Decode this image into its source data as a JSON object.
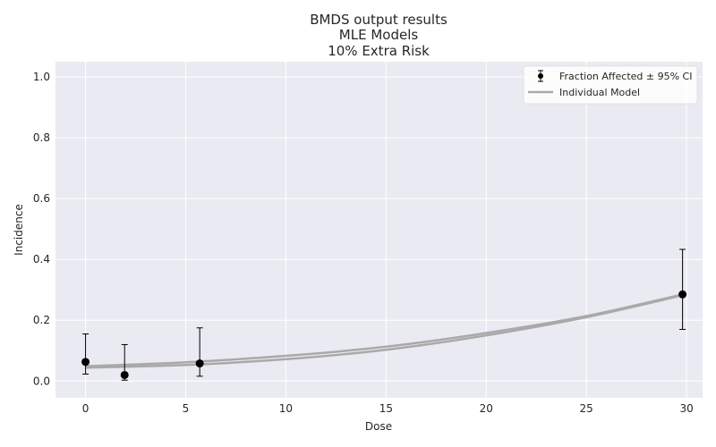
{
  "chart_data": {
    "type": "scatter",
    "title_lines": [
      "BMDS output results",
      "MLE Models",
      "10% Extra Risk"
    ],
    "xlabel": "Dose",
    "ylabel": "Incidence",
    "xlim": [
      -1.5,
      30.8
    ],
    "ylim": [
      -0.055,
      1.05
    ],
    "xticks": [
      0,
      5,
      10,
      15,
      20,
      25,
      30
    ],
    "yticks": [
      0.0,
      0.2,
      0.4,
      0.6,
      0.8,
      1.0
    ],
    "xtick_labels": [
      "0",
      "5",
      "10",
      "15",
      "20",
      "25",
      "30"
    ],
    "ytick_labels": [
      "0.0",
      "0.2",
      "0.4",
      "0.6",
      "0.8",
      "1.0"
    ],
    "grid": true,
    "legend_position": "top-right",
    "legend": {
      "points_label": "Fraction Affected ± 95% CI",
      "model_label": "Individual Model"
    },
    "points": [
      {
        "x": 0,
        "y": 0.063,
        "lower": 0.023,
        "upper": 0.155
      },
      {
        "x": 1.95,
        "y": 0.02,
        "lower": 0.003,
        "upper": 0.12
      },
      {
        "x": 5.7,
        "y": 0.058,
        "lower": 0.016,
        "upper": 0.175
      },
      {
        "x": 29.8,
        "y": 0.285,
        "lower": 0.17,
        "upper": 0.433
      }
    ],
    "models": [
      {
        "x": [
          0,
          5,
          10,
          15,
          20,
          25,
          29.8
        ],
        "y": [
          0.049,
          0.062,
          0.083,
          0.113,
          0.158,
          0.214,
          0.285
        ]
      },
      {
        "x": [
          0,
          5,
          10,
          15,
          20,
          25,
          29.8
        ],
        "y": [
          0.044,
          0.053,
          0.072,
          0.103,
          0.15,
          0.21,
          0.282
        ]
      }
    ],
    "colors": {
      "background": "#eaeaf2",
      "grid": "#ffffff",
      "points": "#000000",
      "model_line": "#a9a9a9"
    }
  }
}
